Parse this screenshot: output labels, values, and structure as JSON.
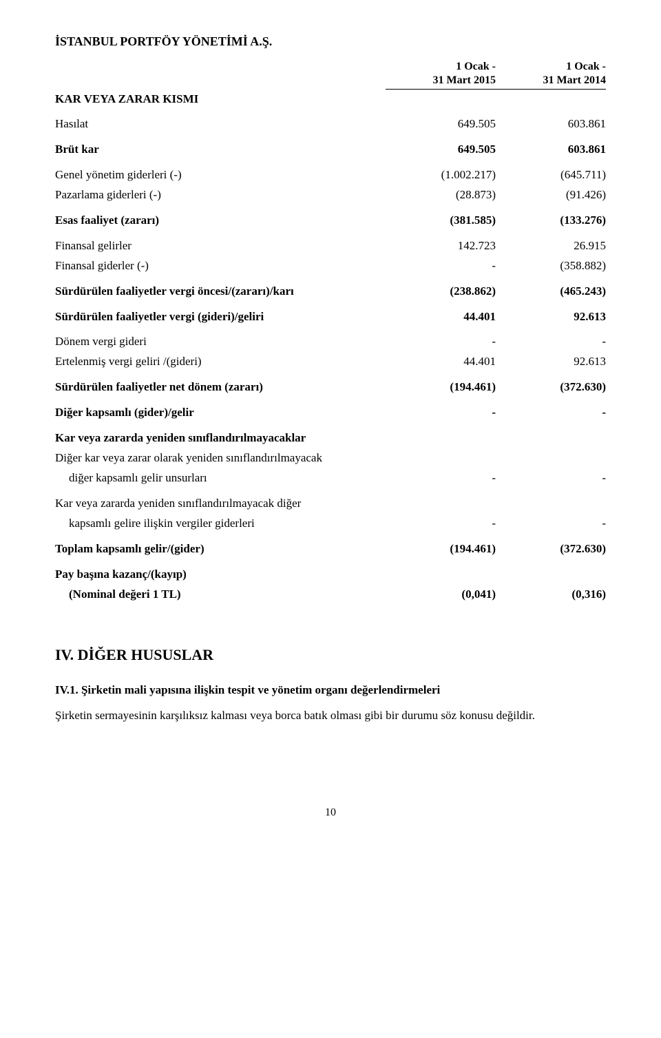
{
  "company": "İSTANBUL PORTFÖY YÖNETİMİ A.Ş.",
  "periods": {
    "col1_line1": "1 Ocak -",
    "col1_line2": "31 Mart 2015",
    "col2_line1": "1 Ocak -",
    "col2_line2": "31 Mart 2014"
  },
  "section_title": "KAR VEYA ZARAR KISMI",
  "rows": [
    {
      "label": "Hasılat",
      "v1": "649.505",
      "v2": "603.861",
      "bold": false,
      "spacer_after": true
    },
    {
      "label": "Brüt kar",
      "v1": "649.505",
      "v2": "603.861",
      "bold": true,
      "spacer_after": true
    },
    {
      "label": "Genel yönetim giderleri (-)",
      "v1": "(1.002.217)",
      "v2": "(645.711)",
      "bold": false
    },
    {
      "label": "Pazarlama giderleri (-)",
      "v1": "(28.873)",
      "v2": "(91.426)",
      "bold": false,
      "spacer_after": true
    },
    {
      "label": "Esas faaliyet (zararı)",
      "v1": "(381.585)",
      "v2": "(133.276)",
      "bold": true,
      "spacer_after": true
    },
    {
      "label": "Finansal gelirler",
      "v1": "142.723",
      "v2": "26.915",
      "bold": false
    },
    {
      "label": "Finansal giderler (-)",
      "v1": "-",
      "v2": "(358.882)",
      "bold": false,
      "spacer_after": true
    },
    {
      "label": "Sürdürülen faaliyetler vergi öncesi/(zararı)/karı",
      "v1": "(238.862)",
      "v2": "(465.243)",
      "bold": true,
      "spacer_after": true
    },
    {
      "label": "Sürdürülen faaliyetler vergi (gideri)/geliri",
      "v1": "44.401",
      "v2": "92.613",
      "bold": true,
      "spacer_after": true
    },
    {
      "label": "Dönem vergi gideri",
      "v1": "-",
      "v2": "-",
      "bold": false
    },
    {
      "label": "Ertelenmiş vergi geliri /(gideri)",
      "v1": "44.401",
      "v2": "92.613",
      "bold": false,
      "spacer_after": true
    },
    {
      "label": "Sürdürülen faaliyetler net dönem (zararı)",
      "v1": "(194.461)",
      "v2": "(372.630)",
      "bold": true,
      "spacer_after": true
    },
    {
      "label": "Diğer kapsamlı (gider)/gelir",
      "v1": "-",
      "v2": "-",
      "bold": true,
      "spacer_after": true
    }
  ],
  "reclass_block": {
    "heading": "Kar veya zararda yeniden sınıflandırılmayacaklar",
    "line1": "Diğer kar veya zarar olarak yeniden sınıflandırılmayacak",
    "line2_label": "diğer kapsamlı gelir unsurları",
    "line2_v1": "-",
    "line2_v2": "-"
  },
  "reclass_block2": {
    "line1": "Kar veya zararda yeniden sınıflandırılmayacak diğer",
    "line2_label": "kapsamlı gelire ilişkin vergiler giderleri",
    "line2_v1": "-",
    "line2_v2": "-"
  },
  "total_comprehensive": {
    "label": "Toplam kapsamlı gelir/(gider)",
    "v1": "(194.461)",
    "v2": "(372.630)"
  },
  "eps": {
    "line1": "Pay başına kazanç/(kayıp)",
    "line2_label": "(Nominal değeri 1 TL)",
    "line2_v1": "(0,041)",
    "line2_v2": "(0,316)"
  },
  "section4_title": "IV. DİĞER HUSUSLAR",
  "section4_sub": "IV.1. Şirketin mali yapısına ilişkin tespit ve yönetim organı değerlendirmeleri",
  "section4_body": "Şirketin sermayesinin karşılıksız kalması veya borca batık olması gibi bir durumu söz konusu değildir.",
  "page_number": "10"
}
